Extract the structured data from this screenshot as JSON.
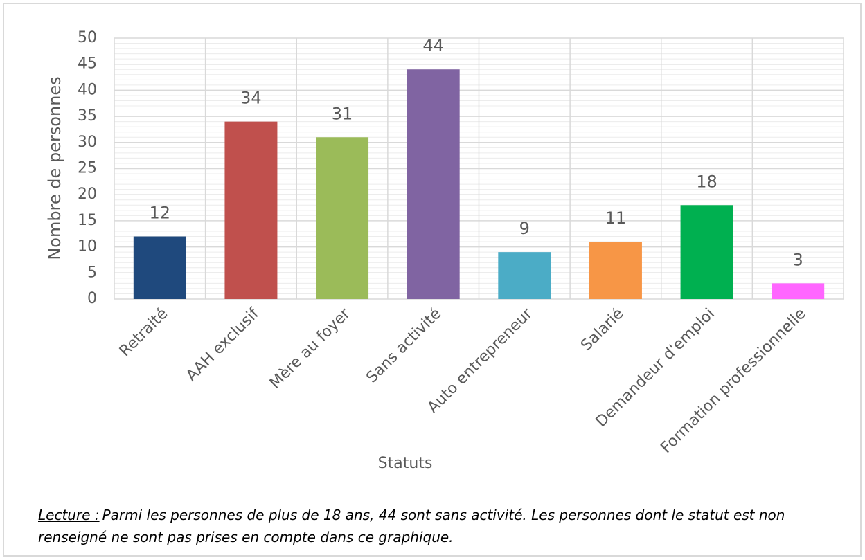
{
  "chart_data": {
    "type": "bar",
    "x_label": "Statuts",
    "y_label": "Nombre de personnes",
    "categories": [
      "Retraité",
      "AAH exclusif",
      "Mère au foyer",
      "Sans activité",
      "Auto entrepreneur",
      "Salarié",
      "Demandeur d'emploi",
      "Formation professionnelle"
    ],
    "values": [
      12,
      34,
      31,
      44,
      9,
      11,
      18,
      3
    ],
    "colors": [
      "#1f497d",
      "#c0504d",
      "#9bbb59",
      "#8064a2",
      "#4bacc6",
      "#f79646",
      "#00b050",
      "#ff66ff"
    ],
    "ylim": [
      0,
      50
    ],
    "yticks": [
      0,
      5,
      10,
      15,
      20,
      25,
      30,
      35,
      40,
      45,
      50
    ],
    "grid": true,
    "note": {
      "label": "Lecture :",
      "text": "Parmi les personnes de plus de 18 ans, 44 sont sans activité. Les personnes dont le statut est non renseigné ne sont pas prises en compte dans ce graphique."
    }
  }
}
